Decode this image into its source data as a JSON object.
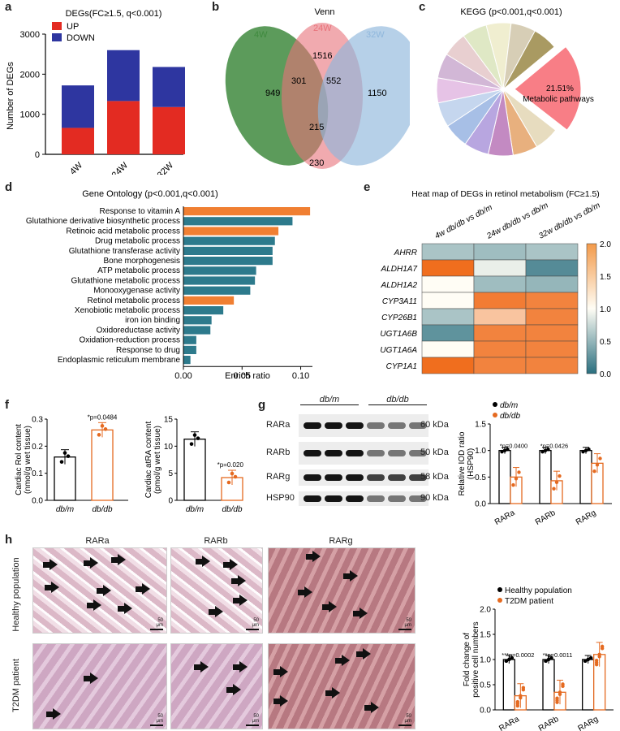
{
  "panels": {
    "a": "a",
    "b": "b",
    "c": "c",
    "d": "d",
    "e": "e",
    "f": "f",
    "g": "g",
    "h": "h"
  },
  "a": {
    "chart_data": {
      "type": "bar-stacked",
      "title": "DEGs(FC≥1.5, q<0.001)",
      "ylabel": "Number of DEGs",
      "categories": [
        "4W",
        "24W",
        "32W"
      ],
      "series": [
        {
          "name": "UP",
          "values": [
            660,
            1330,
            1180
          ],
          "color": "#e32b22"
        },
        {
          "name": "DOWN",
          "values": [
            1060,
            1270,
            1000
          ],
          "color": "#2e36a0"
        }
      ],
      "ylim": [
        0,
        3000
      ],
      "yticks": [
        "0",
        "1000",
        "2000",
        "3000"
      ]
    }
  },
  "b": {
    "title": "Venn",
    "sets": [
      {
        "name": "4W",
        "color": "#3f8a3e"
      },
      {
        "name": "24W",
        "color": "#e8727a"
      },
      {
        "name": "32W",
        "color": "#8fb7dc"
      }
    ],
    "counts": {
      "only4w": "949",
      "only24w": "1516",
      "only32w": "1150",
      "w4_24": "301",
      "w24_32": "552",
      "all": "215",
      "w4_32": "230"
    }
  },
  "c": {
    "title": "KEGG (p<0.001,q<0.001)",
    "highlight_pct": "21.51%",
    "highlight_label": "Metabolic pathways",
    "chart_data": {
      "type": "pie",
      "highlight_value": 21.51
    }
  },
  "d": {
    "chart_data": {
      "type": "bar-horizontal",
      "title": "Gene Ontology (p<0.001,q<0.001)",
      "xlabel": "Enrich ratio",
      "xticks": [
        "0.00",
        "0.05",
        "0.10"
      ],
      "xlim": [
        0,
        0.11
      ],
      "categories": [
        "Response to vitamin A",
        "Glutathione derivative biosynthetic process",
        "Retinoic acid metabolic process",
        "Drug metabolic process",
        "Glutathione transferase activity",
        "Bone morphogenesis",
        "ATP metabolic process",
        "Glutathione metabolic process",
        "Monooxygenase activity",
        "Retinol metabolic process",
        "Xenobiotic metabolic process",
        "iron ion binding",
        "Oxidoreductase activity",
        "Oxidation-reduction process",
        "Response to drug",
        "Endoplasmic reticulum membrane"
      ],
      "values": [
        0.108,
        0.093,
        0.081,
        0.078,
        0.076,
        0.076,
        0.062,
        0.061,
        0.057,
        0.043,
        0.034,
        0.024,
        0.023,
        0.011,
        0.011,
        0.006
      ],
      "highlight": [
        true,
        false,
        true,
        false,
        false,
        false,
        false,
        false,
        false,
        true,
        false,
        false,
        false,
        false,
        false,
        false
      ],
      "colors": {
        "highlight": "#f07f32",
        "normal": "#2d7a8c"
      }
    }
  },
  "e": {
    "chart_data": {
      "type": "heatmap",
      "title": "Heat map of DEGs in retinol metabolism (FC≥1.5)",
      "columns": [
        "4w db/db vs db/m",
        "24w db/db vs db/m",
        "32w db/db vs db/m"
      ],
      "rows": [
        "AHRR",
        "ALDH1A7",
        "ALDH1A2",
        "CYP3A11",
        "CYP26B1",
        "UGT1A6B",
        "UGT1A6A",
        "CYP1A1"
      ],
      "values": [
        [
          0.6,
          0.55,
          0.6
        ],
        [
          2.0,
          0.9,
          0.2
        ],
        [
          1.0,
          0.55,
          0.5
        ],
        [
          1.0,
          1.9,
          1.85
        ],
        [
          0.6,
          1.4,
          1.85
        ],
        [
          0.25,
          1.85,
          1.85
        ],
        [
          1.0,
          1.85,
          1.85
        ],
        [
          2.0,
          1.85,
          1.85
        ]
      ],
      "scale": [
        "2.0",
        "1.5",
        "1.0",
        "0.5",
        "0.0"
      ],
      "vrange": [
        0,
        2
      ]
    }
  },
  "f": {
    "left": {
      "chart_data": {
        "type": "bar",
        "ylabel": "Cardiac Rol content",
        "ylabel2": "(nmol/g wet tissue)",
        "categories": [
          "db/m",
          "db/db"
        ],
        "values": [
          0.16,
          0.26
        ],
        "ylim": [
          0,
          0.3
        ],
        "yticks": [
          "0.0",
          "0.1",
          "0.2",
          "0.3"
        ],
        "pvalue": "*p=0.0484"
      }
    },
    "right": {
      "chart_data": {
        "type": "bar",
        "ylabel": "Cardiac atRA content",
        "ylabel2": "(pmol/g wet tissue)",
        "categories": [
          "db/m",
          "db/db"
        ],
        "values": [
          11.3,
          4.2
        ],
        "ylim": [
          0,
          15
        ],
        "yticks": [
          "0",
          "5",
          "10",
          "15"
        ],
        "pvalue": "*p=0.0203"
      }
    }
  },
  "g": {
    "groups": [
      "db/m",
      "db/db"
    ],
    "blots": [
      {
        "name": "RARa",
        "kda": "60 kDa"
      },
      {
        "name": "RARb",
        "kda": "50 kDa"
      },
      {
        "name": "RARg",
        "kda": "58 kDa"
      },
      {
        "name": "HSP90",
        "kda": "90 kDa"
      }
    ],
    "chart_data": {
      "type": "bar",
      "ylabel": "Relative IOD ratio",
      "ylabel2": "(HSP90)",
      "categories": [
        "RARa",
        "RARb",
        "RARg"
      ],
      "series": [
        {
          "name": "db/m",
          "values": [
            1.0,
            1.0,
            1.0
          ]
        },
        {
          "name": "db/db",
          "values": [
            0.5,
            0.43,
            0.76
          ]
        }
      ],
      "ylim": [
        0,
        1.5
      ],
      "yticks": [
        "0.0",
        "0.5",
        "1.0",
        "1.5"
      ],
      "pvalues": [
        "*p=0.0400",
        "*p=0.0426",
        ""
      ]
    }
  },
  "h": {
    "columns": [
      "RARa",
      "RARb",
      "RARg"
    ],
    "rows": [
      "Healthy population",
      "T2DM patient"
    ],
    "scale": "50 μm",
    "chart_data": {
      "type": "bar",
      "ylabel": "Fold change of",
      "ylabel2": "positive cell numbers",
      "categories": [
        "RARa",
        "RARb",
        "RARg"
      ],
      "series": [
        {
          "name": "Healthy population",
          "values": [
            1.0,
            1.0,
            1.0
          ]
        },
        {
          "name": "T2DM patient",
          "values": [
            0.28,
            0.35,
            1.1
          ]
        }
      ],
      "ylim": [
        0,
        2.0
      ],
      "yticks": [
        "0.0",
        "0.5",
        "1.0",
        "1.5",
        "2.0"
      ],
      "pvalues": [
        "***p=0.0002",
        "**p=0.0011",
        ""
      ]
    }
  }
}
